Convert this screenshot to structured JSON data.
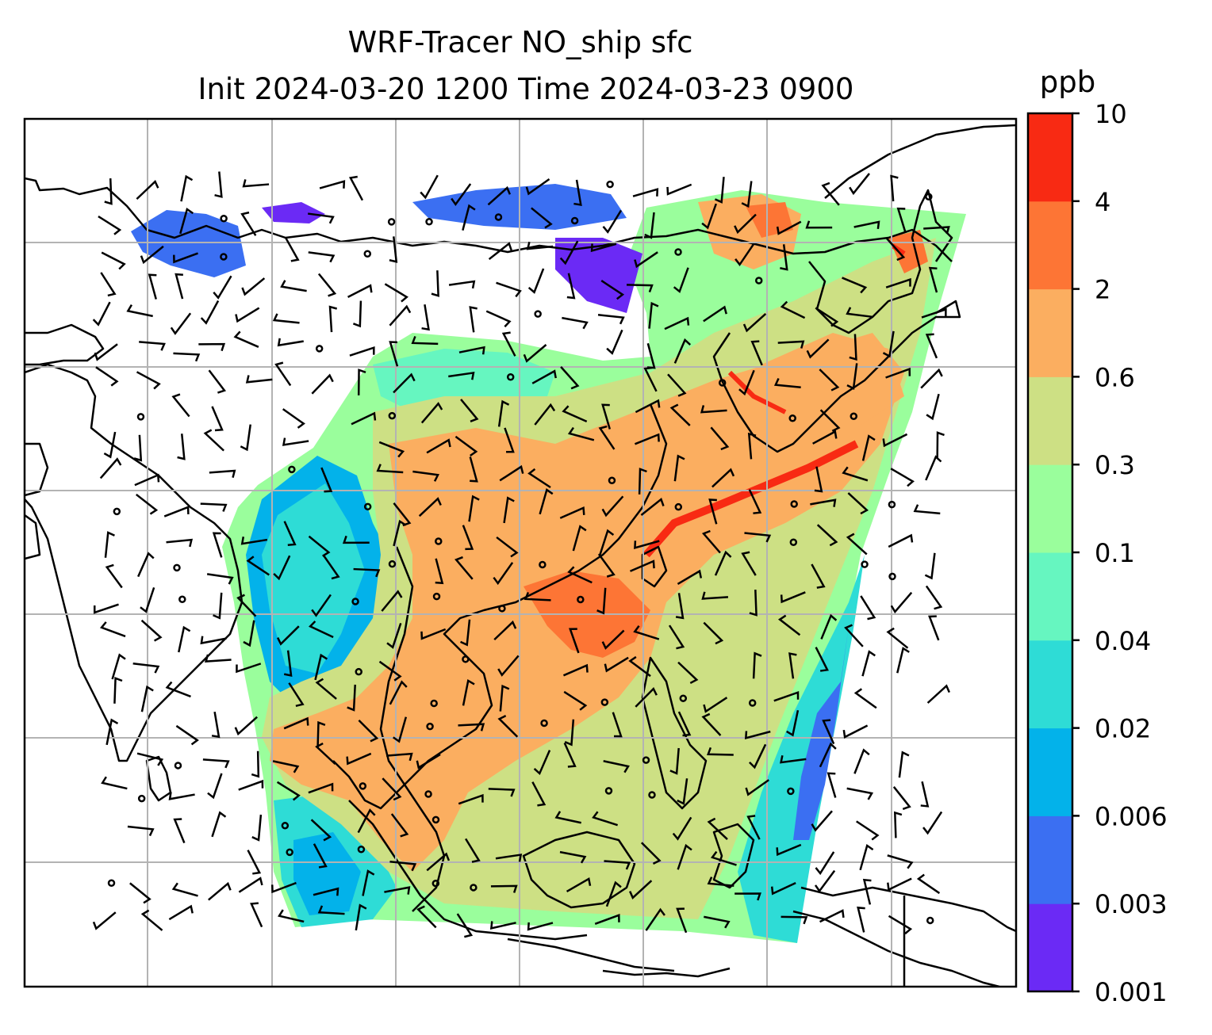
{
  "title": {
    "line1": "WRF-Tracer NO_ship sfc",
    "line2": "Init 2024-03-20 1200 Time 2024-03-23 0900"
  },
  "colorbar": {
    "unit": "ppb",
    "levels": [
      {
        "label": "0.001",
        "color": "#6b2af5"
      },
      {
        "label": "0.003",
        "color": "#3b6ff2"
      },
      {
        "label": "0.006",
        "color": "#03b2ea"
      },
      {
        "label": "0.02",
        "color": "#2edcd6"
      },
      {
        "label": "0.04",
        "color": "#66f6c0"
      },
      {
        "label": "0.1",
        "color": "#9afe9c"
      },
      {
        "label": "0.3",
        "color": "#cde084"
      },
      {
        "label": "0.6",
        "color": "#fbae60"
      },
      {
        "label": "2",
        "color": "#fd7535"
      },
      {
        "label": "4",
        "color": "#f82a13"
      },
      {
        "label": "10",
        "color": ""
      }
    ]
  },
  "map": {
    "gridlines": "on",
    "coastlines": "on",
    "wind_barbs": "on",
    "field": "NO_ship concentration at surface"
  }
}
